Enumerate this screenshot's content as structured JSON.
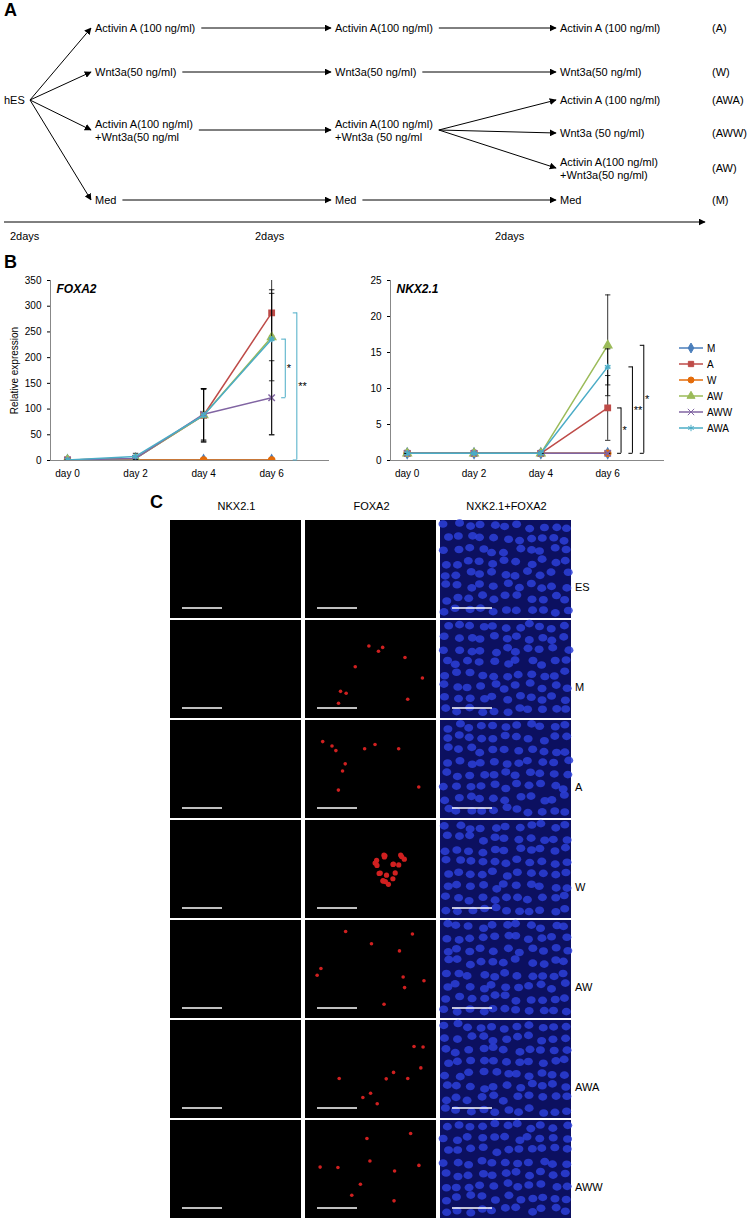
{
  "panel_A": {
    "letter": "A",
    "source": "hES",
    "rows": [
      {
        "steps": [
          "Activin A (100 ng/ml)",
          "Activin A(100 ng/ml)",
          "Activin A (100 ng/ml)"
        ],
        "label": "(A)"
      },
      {
        "steps": [
          "Wnt3a(50 ng/ml)",
          "Wnt3a(50 ng/ml)",
          "Wnt3a(50 ng/ml)"
        ],
        "label": "(W)"
      },
      {
        "steps": [
          "Activin A(100 ng/ml)\n+Wnt3a(50 ng/ml",
          "Activin A(100 ng/ml)\n+Wnt3a (50 ng/ml"
        ],
        "branches": [
          {
            "step": "Activin A (100 ng/ml)",
            "label": "(AWA)"
          },
          {
            "step": "Wnt3a (50 ng/ml)",
            "label": "(AWW)"
          },
          {
            "step": "Activin A(100 ng/ml)\n+Wnt3a(50 ng/ml)",
            "label": "(AW)"
          }
        ]
      },
      {
        "steps": [
          "Med",
          "Med",
          "Med"
        ],
        "label": "(M)"
      }
    ],
    "timeline": [
      "2days",
      "2days",
      "2days"
    ]
  },
  "chart_data": [
    {
      "type": "line",
      "letter": "B",
      "title": "FOXA2",
      "y_label": "Relative expression",
      "categories": [
        "day 0",
        "day 2",
        "day 4",
        "day 6"
      ],
      "ylim": [
        0,
        350
      ],
      "yticks": [
        0,
        50,
        100,
        150,
        200,
        250,
        300,
        350
      ],
      "series": [
        {
          "name": "M",
          "color": "#4a7ebb",
          "marker": "diamond",
          "values": [
            1,
            1,
            1,
            1
          ],
          "errors": [
            0,
            0,
            0,
            0
          ]
        },
        {
          "name": "A",
          "color": "#be4b48",
          "marker": "square",
          "values": [
            1,
            4,
            88,
            287
          ],
          "errors": [
            0,
            2,
            52,
            45
          ]
        },
        {
          "name": "W",
          "color": "#e46c0a",
          "marker": "circle",
          "values": [
            1,
            1,
            1,
            1
          ],
          "errors": [
            0,
            0,
            0,
            0
          ]
        },
        {
          "name": "AW",
          "color": "#9bbb59",
          "marker": "triangle",
          "values": [
            1,
            4,
            88,
            240
          ],
          "errors": [
            0,
            3,
            50,
            85
          ]
        },
        {
          "name": "AWW",
          "color": "#8064a2",
          "marker": "times",
          "values": [
            1,
            4,
            90,
            122
          ],
          "errors": [
            0,
            3,
            50,
            72
          ]
        },
        {
          "name": "AWA",
          "color": "#4bacc6",
          "marker": "asterisk",
          "values": [
            1,
            8,
            88,
            236
          ],
          "errors": [
            0,
            6,
            52,
            186
          ]
        }
      ],
      "significance": [
        {
          "y1": 236,
          "y2": 122,
          "label": "*",
          "color": "#4bacc6"
        },
        {
          "y1": 287,
          "y2": 1,
          "label": "**",
          "color": "#4bacc6"
        }
      ]
    },
    {
      "type": "line",
      "title": "NKX2.1",
      "categories": [
        "day 0",
        "day 2",
        "day 4",
        "day 6"
      ],
      "ylim": [
        0,
        25
      ],
      "yticks": [
        0,
        5,
        10,
        15,
        20,
        25
      ],
      "legend": "right",
      "series": [
        {
          "name": "M",
          "color": "#4a7ebb",
          "marker": "diamond",
          "values": [
            1,
            1,
            1,
            1
          ],
          "errors": [
            0,
            0,
            0,
            0
          ]
        },
        {
          "name": "A",
          "color": "#be4b48",
          "marker": "square",
          "values": [
            1,
            1,
            1,
            7.3
          ],
          "errors": [
            0,
            0,
            0,
            4.5
          ]
        },
        {
          "name": "W",
          "color": "#e46c0a",
          "marker": "circle",
          "values": [
            1,
            1,
            1,
            1
          ],
          "errors": [
            0,
            0,
            0,
            0
          ]
        },
        {
          "name": "AW",
          "color": "#9bbb59",
          "marker": "triangle",
          "values": [
            1,
            1,
            1,
            16
          ],
          "errors": [
            0,
            0,
            0,
            7
          ]
        },
        {
          "name": "AWW",
          "color": "#8064a2",
          "marker": "times",
          "values": [
            1,
            1,
            1,
            1
          ],
          "errors": [
            0,
            0,
            0,
            0
          ]
        },
        {
          "name": "AWA",
          "color": "#4bacc6",
          "marker": "asterisk",
          "values": [
            1,
            1,
            1,
            13
          ],
          "errors": [
            0,
            0,
            0,
            2.5
          ]
        }
      ],
      "significance": [
        {
          "y1": 7.3,
          "y2": 1,
          "label": "*",
          "color": "#000000"
        },
        {
          "y1": 13,
          "y2": 1,
          "label": "**",
          "color": "#000000"
        },
        {
          "y1": 16,
          "y2": 1,
          "label": "*",
          "color": "#000000"
        }
      ]
    }
  ],
  "panel_C": {
    "letter": "C",
    "columns": [
      "NKX2.1",
      "FOXA2",
      "NXK2.1+FOXA2"
    ],
    "rows": [
      "ES",
      "M",
      "A",
      "W",
      "AW",
      "AWA",
      "AWW"
    ]
  }
}
